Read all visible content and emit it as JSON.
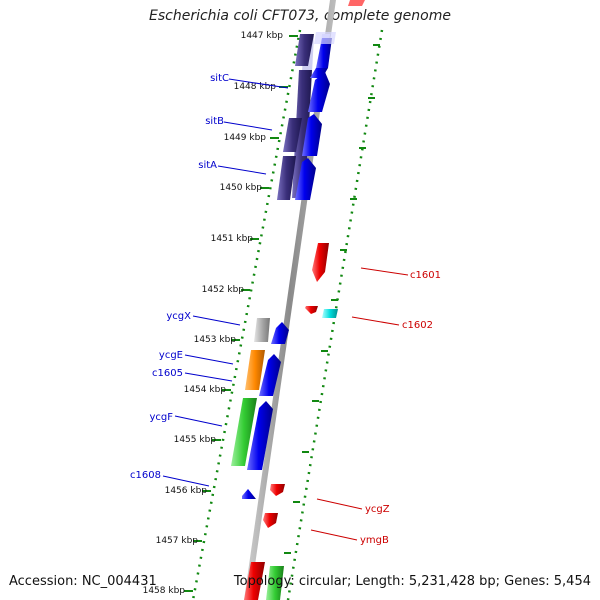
{
  "title": "Escherichia coli CFT073, complete genome",
  "footer": {
    "accession": "Accession: NC_004431",
    "summary": "Topology: circular; Length: 5,231,428 bp; Genes: 5,454"
  },
  "colors": {
    "forward_label": "#0000cc",
    "reverse_label": "#cc0000",
    "tick": "#118811",
    "backbone": "#888888",
    "cds_forward": "#0000ee",
    "cds_reverse": "#ee0000",
    "other_rna": "#aaaaaa",
    "trna": "#ff8800",
    "rrna": "#33cc33",
    "misc": "#00dddd",
    "operon": "#3a2f7a"
  },
  "scale": {
    "unit": "kbp",
    "ticks": [
      {
        "label": "1447 kbp",
        "value": 1447
      },
      {
        "label": "1448 kbp",
        "value": 1448
      },
      {
        "label": "1449 kbp",
        "value": 1449
      },
      {
        "label": "1450 kbp",
        "value": 1450
      },
      {
        "label": "1451 kbp",
        "value": 1451
      },
      {
        "label": "1452 kbp",
        "value": 1452
      },
      {
        "label": "1453 kbp",
        "value": 1453
      },
      {
        "label": "1454 kbp",
        "value": 1454
      },
      {
        "label": "1455 kbp",
        "value": 1455
      },
      {
        "label": "1456 kbp",
        "value": 1456
      },
      {
        "label": "1457 kbp",
        "value": 1457
      },
      {
        "label": "1458 kbp",
        "value": 1458
      }
    ]
  },
  "genes": {
    "forward": [
      {
        "name": "sitC",
        "start": 1447.1,
        "end": 1448.3
      },
      {
        "name": "sitB",
        "start": 1448.4,
        "end": 1449.3
      },
      {
        "name": "sitA",
        "start": 1449.4,
        "end": 1450.3
      },
      {
        "name": "ycgX",
        "start": 1452.65,
        "end": 1453.0
      },
      {
        "name": "ycgE",
        "start": 1453.3,
        "end": 1454.0
      },
      {
        "name": "c1605",
        "start": 1453.3,
        "end": 1454.0
      },
      {
        "name": "ycgF",
        "start": 1454.2,
        "end": 1455.5
      },
      {
        "name": "c1608",
        "start": 1455.95,
        "end": 1456.1
      }
    ],
    "reverse": [
      {
        "name": "c1601",
        "start": 1451.15,
        "end": 1451.8
      },
      {
        "name": "c1602",
        "start": 1452.35,
        "end": 1452.5
      },
      {
        "name": "ycgZ",
        "start": 1455.8,
        "end": 1456.0
      },
      {
        "name": "ymgB",
        "start": 1456.4,
        "end": 1456.6
      }
    ]
  }
}
